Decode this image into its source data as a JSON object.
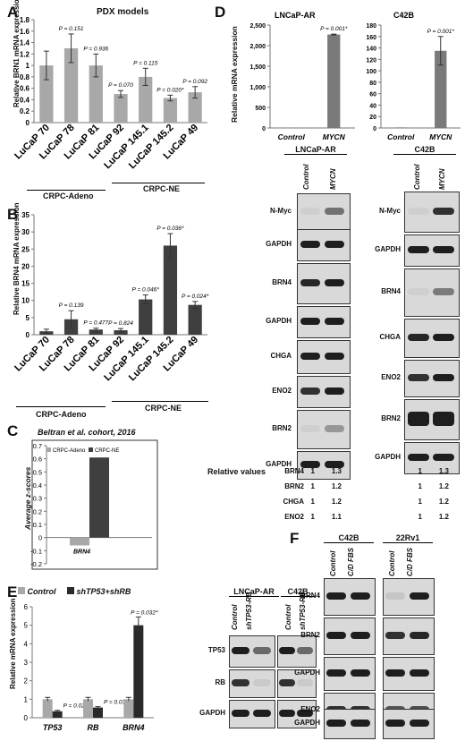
{
  "panels": {
    "A": {
      "label": "A",
      "title": "PDX models",
      "ylabel": "Relative BRN1 mRNA expression",
      "groups": [
        {
          "name": "CRPC-Adeno"
        },
        {
          "name": "CRPC-NE"
        }
      ]
    },
    "B": {
      "label": "B",
      "ylabel": "Relative BRN4 mRNA expression",
      "groups": [
        {
          "name": "CRPC-Adeno"
        },
        {
          "name": "CRPC-NE"
        }
      ]
    },
    "C": {
      "label": "C",
      "title": "Beltran et al. cohort, 2016",
      "ylabel": "Average z-scores",
      "xlabel": "BRN4"
    },
    "D": {
      "label": "D",
      "ylabel": "Relative mRNA expression",
      "relative_values_label": "Relative values",
      "blot_left_title": "LNCaP-AR",
      "blot_right_title": "C42B",
      "rel_values": [
        {
          "name": "BRN4",
          "l1": "1",
          "l2": "1.3",
          "r1": "1",
          "r2": "1.3"
        },
        {
          "name": "BRN2",
          "l1": "1",
          "l2": "1.2",
          "r1": "1",
          "r2": "1.2"
        },
        {
          "name": "CHGA",
          "l1": "1",
          "l2": "1.2",
          "r1": "1",
          "r2": "1.2"
        },
        {
          "name": "ENO2",
          "l1": "1",
          "l2": "1.1",
          "r1": "1",
          "r2": "1.2"
        }
      ]
    },
    "E": {
      "label": "E",
      "ylabel": "Relative mRNA expression",
      "blot_titles": [
        "LNCaP-AR",
        "C42B"
      ],
      "blot_cols": [
        "Control",
        "shTP53-RB"
      ],
      "blot_rows": [
        "TP53",
        "RB",
        "GAPDH"
      ]
    },
    "F": {
      "label": "F",
      "titles": [
        "C42B",
        "22Rv1"
      ],
      "cols": [
        "Control",
        "C/D FBS"
      ],
      "rows": [
        "BRN4",
        "BRN2",
        "GAPDH",
        "ENO2",
        "GAPDH"
      ]
    }
  },
  "chart_data": [
    {
      "id": "A",
      "type": "bar",
      "categories": [
        "LuCaP 70",
        "LuCaP 78",
        "LuCaP 81",
        "LuCaP 92",
        "LuCaP 145.1",
        "LuCaP 145.2",
        "LuCaP 49"
      ],
      "values": [
        1.0,
        1.3,
        1.0,
        0.5,
        0.8,
        0.43,
        0.53
      ],
      "errors": [
        0.25,
        0.25,
        0.2,
        0.06,
        0.15,
        0.05,
        0.1
      ],
      "annotations": [
        "",
        "P = 0.151",
        "P = 0.936",
        "P = 0.070",
        "P = 0.115",
        "P = 0.020*",
        "P = 0.092"
      ],
      "yticks": [
        "0",
        "0.2",
        "0.4",
        "0.6",
        "0.8",
        "1",
        "1.2",
        "1.4",
        "1.6",
        "1.8"
      ],
      "ylim": [
        0,
        1.8
      ],
      "color": "#a8a8a8"
    },
    {
      "id": "B",
      "type": "bar",
      "categories": [
        "LuCaP 70",
        "LuCaP 78",
        "LuCaP 81",
        "LuCaP 92",
        "LuCaP 145.1",
        "LuCaP 145.2",
        "LuCaP 49"
      ],
      "values": [
        1.0,
        4.5,
        1.5,
        1.3,
        10.3,
        26.0,
        8.7
      ],
      "errors": [
        0.6,
        2.5,
        0.4,
        0.5,
        1.3,
        3.5,
        1.0
      ],
      "annotations": [
        "",
        "P = 0.139",
        "P = 0.477",
        "P = 0.824",
        "P = 0.046*",
        "P = 0.036*",
        "P = 0.024*"
      ],
      "yticks": [
        "0",
        "5",
        "10",
        "15",
        "20",
        "25",
        "30",
        "35"
      ],
      "ylim": [
        0,
        35
      ],
      "color": "#3f3f3f"
    },
    {
      "id": "C",
      "type": "bar",
      "categories": [
        "BRN4"
      ],
      "series": [
        {
          "name": "CRPC-Adeno",
          "values": [
            -0.06
          ],
          "color": "#a8a8a8"
        },
        {
          "name": "CRPC-NE",
          "values": [
            0.61
          ],
          "color": "#3f3f3f"
        }
      ],
      "yticks": [
        "-0.2",
        "-0.1",
        "0",
        "0.1",
        "0.2",
        "0.3",
        "0.4",
        "0.5",
        "0.6",
        "0.7"
      ],
      "ylim": [
        -0.2,
        0.7
      ]
    },
    {
      "id": "D1",
      "type": "bar",
      "title": "LNCaP-AR",
      "categories": [
        "Control",
        "MYCN"
      ],
      "values": [
        1,
        2270
      ],
      "errors": [
        0,
        10
      ],
      "annotations": [
        "",
        "P = 0.001*"
      ],
      "yticks": [
        "0",
        "500",
        "1,000",
        "1,500",
        "2,000",
        "2,500"
      ],
      "ylim": [
        0,
        2500
      ],
      "color": "#7a7a7a"
    },
    {
      "id": "D2",
      "type": "bar",
      "title": "C42B",
      "categories": [
        "Control",
        "MYCN"
      ],
      "values": [
        1,
        135
      ],
      "errors": [
        0,
        25
      ],
      "annotations": [
        "",
        "P = 0.001*"
      ],
      "yticks": [
        "0",
        "20",
        "40",
        "60",
        "80",
        "100",
        "120",
        "140",
        "160",
        "180"
      ],
      "ylim": [
        0,
        180
      ],
      "color": "#7a7a7a"
    },
    {
      "id": "E",
      "type": "bar",
      "categories": [
        "TP53",
        "RB",
        "BRN4"
      ],
      "series": [
        {
          "name": "Control",
          "values": [
            1.0,
            1.0,
            1.0
          ],
          "errors": [
            0.1,
            0.1,
            0.1
          ],
          "color": "#a8a8a8"
        },
        {
          "name": "shTP53+shRB",
          "values": [
            0.35,
            0.55,
            5.0
          ],
          "errors": [
            0.05,
            0.05,
            0.45
          ],
          "color": "#2a2a2a"
        }
      ],
      "annotations": [
        "P = 0.025*",
        "P = 0.030*",
        "P = 0.032*"
      ],
      "yticks": [
        "0",
        "1",
        "2",
        "3",
        "4",
        "5",
        "6"
      ],
      "ylim": [
        0,
        6
      ]
    }
  ]
}
